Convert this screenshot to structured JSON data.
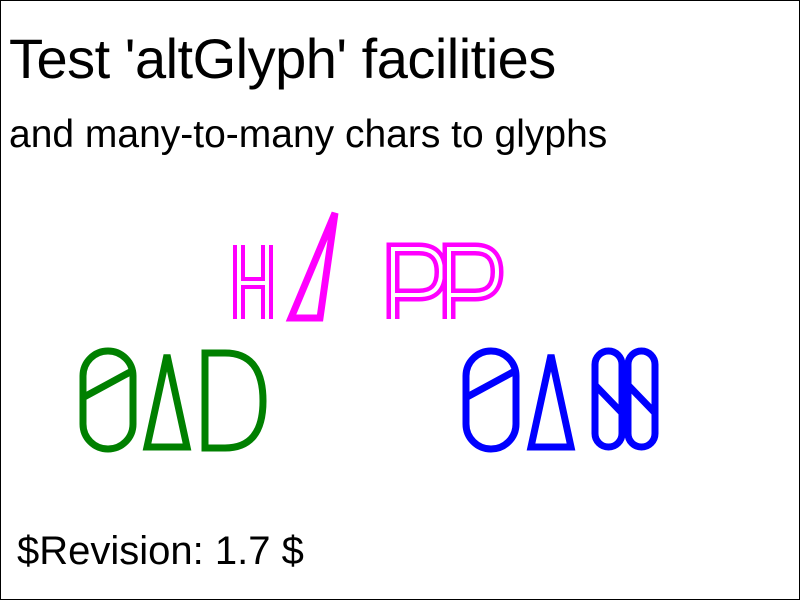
{
  "title": "Test 'altGlyph' facilities",
  "subtitle": "and many-to-many chars to glyphs",
  "revision": "$Revision: 1.7 $",
  "words": {
    "happy": {
      "glyphs": [
        "H",
        "Δ",
        "P",
        "P"
      ],
      "color": "#ff00ff",
      "icon": "happ-glyph-word"
    },
    "sad": {
      "glyphs": [
        "S",
        "Δ",
        "D"
      ],
      "color": "#008000",
      "icon": "sad-glyph-word"
    },
    "sass": {
      "glyphs": [
        "S",
        "Δ",
        "S",
        "S"
      ],
      "color": "#0000ff",
      "icon": "sass-glyph-word"
    }
  }
}
